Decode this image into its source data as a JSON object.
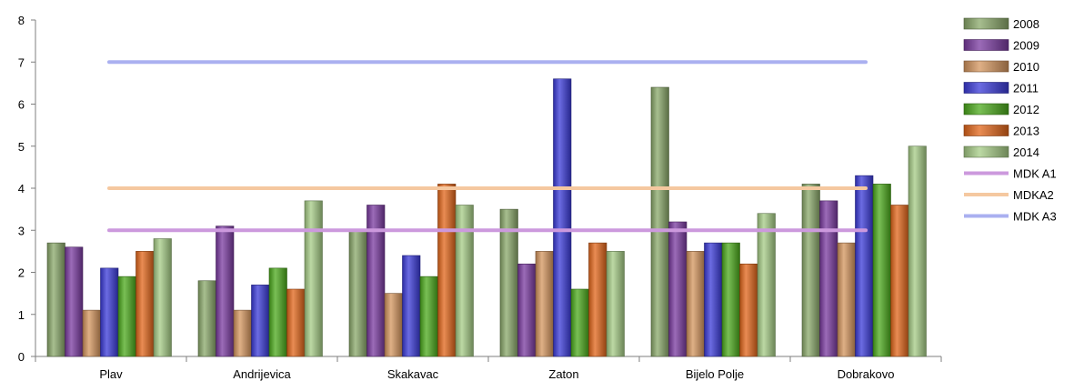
{
  "chart_data": {
    "type": "bar",
    "categories": [
      "Plav",
      "Andrijevica",
      "Skakavac",
      "Zaton",
      "Bijelo Polje",
      "Dobrakovo"
    ],
    "series": [
      {
        "name": "2008",
        "values": [
          2.7,
          1.8,
          3.0,
          3.5,
          6.4,
          4.1
        ],
        "color": "#8aa86a"
      },
      {
        "name": "2009",
        "values": [
          2.6,
          3.1,
          3.6,
          2.2,
          3.2,
          3.7
        ],
        "color": "#7a3aa0"
      },
      {
        "name": "2010",
        "values": [
          1.1,
          1.1,
          1.5,
          2.5,
          2.5,
          2.7
        ],
        "color": "#d4955e"
      },
      {
        "name": "2011",
        "values": [
          2.1,
          1.7,
          2.4,
          6.6,
          2.7,
          4.3
        ],
        "color": "#3a3ad8"
      },
      {
        "name": "2012",
        "values": [
          1.9,
          2.1,
          1.9,
          1.6,
          2.7,
          4.1
        ],
        "color": "#4caa1c"
      },
      {
        "name": "2013",
        "values": [
          2.5,
          1.6,
          4.1,
          2.7,
          2.2,
          3.6
        ],
        "color": "#e2661a"
      },
      {
        "name": "2014",
        "values": [
          2.8,
          3.7,
          3.6,
          2.5,
          3.4,
          5.0
        ],
        "color": "#a6cc86"
      }
    ],
    "lines": [
      {
        "name": "MDK A1",
        "value": 3,
        "color": "#cc99dd"
      },
      {
        "name": "MDKA2",
        "value": 4,
        "color": "#f5c8a0"
      },
      {
        "name": "MDK A3",
        "value": 7,
        "color": "#aab0f0"
      }
    ],
    "ylim": [
      0,
      8
    ],
    "yticks": [
      "0",
      "1",
      "2",
      "3",
      "4",
      "5",
      "6",
      "7",
      "8"
    ],
    "legend_position": "right",
    "grid": false
  }
}
